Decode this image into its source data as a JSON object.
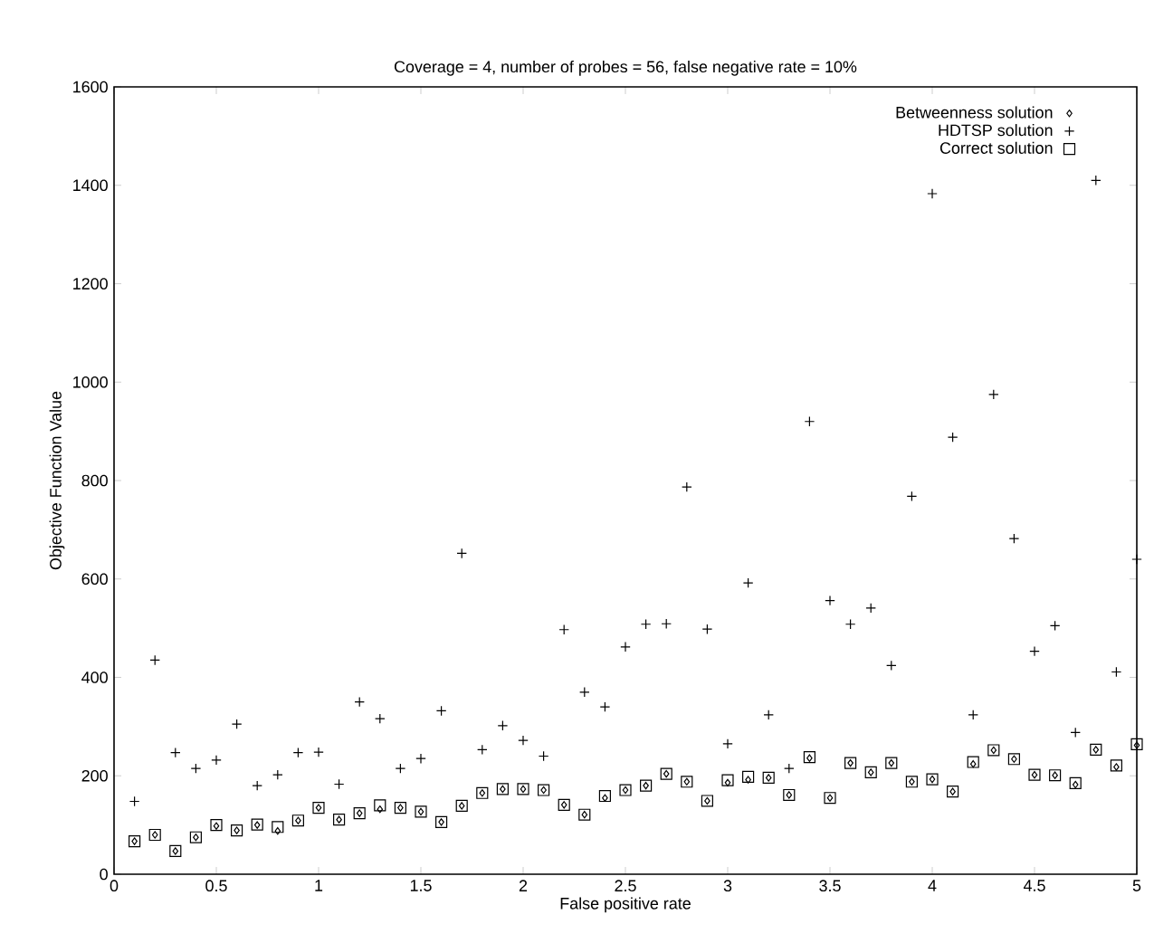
{
  "chart_data": {
    "type": "scatter",
    "title": "Coverage = 4, number of probes = 56, false negative rate = 10%",
    "xlabel": "False positive rate",
    "ylabel": "Objective Function Value",
    "x": [
      0.1,
      0.2,
      0.3,
      0.4,
      0.5,
      0.6,
      0.7,
      0.8,
      0.9,
      1.0,
      1.1,
      1.2,
      1.3,
      1.4,
      1.5,
      1.6,
      1.7,
      1.8,
      1.9,
      2.0,
      2.1,
      2.2,
      2.3,
      2.4,
      2.5,
      2.6,
      2.7,
      2.8,
      2.9,
      3.0,
      3.1,
      3.2,
      3.3,
      3.4,
      3.5,
      3.6,
      3.7,
      3.8,
      3.9,
      4.0,
      4.1,
      4.2,
      4.3,
      4.4,
      4.5,
      4.6,
      4.7,
      4.8,
      4.9,
      5.0
    ],
    "series": [
      {
        "name": "Betweenness solution",
        "color": "#000000",
        "marker": "diamond",
        "values": [
          67,
          80,
          47,
          75,
          98,
          89,
          100,
          88,
          109,
          135,
          111,
          124,
          132,
          135,
          127,
          106,
          139,
          165,
          173,
          173,
          171,
          141,
          121,
          155,
          171,
          180,
          204,
          188,
          149,
          186,
          192,
          196,
          161,
          236,
          155,
          226,
          207,
          226,
          188,
          193,
          168,
          224,
          252,
          234,
          202,
          201,
          182,
          253,
          218,
          262
        ]
      },
      {
        "name": "HDTSP solution",
        "color": "#000000",
        "marker": "cross",
        "values": [
          148,
          435,
          247,
          215,
          232,
          305,
          180,
          202,
          247,
          248,
          183,
          350,
          316,
          215,
          235,
          332,
          652,
          253,
          302,
          272,
          240,
          497,
          370,
          340,
          462,
          508,
          509,
          787,
          498,
          265,
          592,
          324,
          215,
          920,
          556,
          508,
          541,
          424,
          768,
          1383,
          888,
          324,
          975,
          682,
          453,
          505,
          288,
          1410,
          411,
          640
        ]
      },
      {
        "name": "Correct solution",
        "color": "#000000",
        "marker": "square",
        "values": [
          67,
          80,
          47,
          75,
          100,
          89,
          101,
          96,
          109,
          135,
          111,
          124,
          140,
          135,
          127,
          106,
          139,
          165,
          173,
          173,
          171,
          141,
          121,
          159,
          171,
          180,
          204,
          188,
          149,
          191,
          198,
          196,
          161,
          238,
          155,
          226,
          207,
          226,
          188,
          193,
          168,
          228,
          252,
          234,
          202,
          201,
          185,
          253,
          221,
          264
        ]
      }
    ],
    "xlim": [
      0,
      5
    ],
    "ylim": [
      0,
      1600
    ],
    "xticks": [
      0,
      0.5,
      1,
      1.5,
      2,
      2.5,
      3,
      3.5,
      4,
      4.5,
      5
    ],
    "yticks": [
      0,
      200,
      400,
      600,
      800,
      1000,
      1200,
      1400,
      1600
    ],
    "grid": false,
    "legend": "top right"
  }
}
